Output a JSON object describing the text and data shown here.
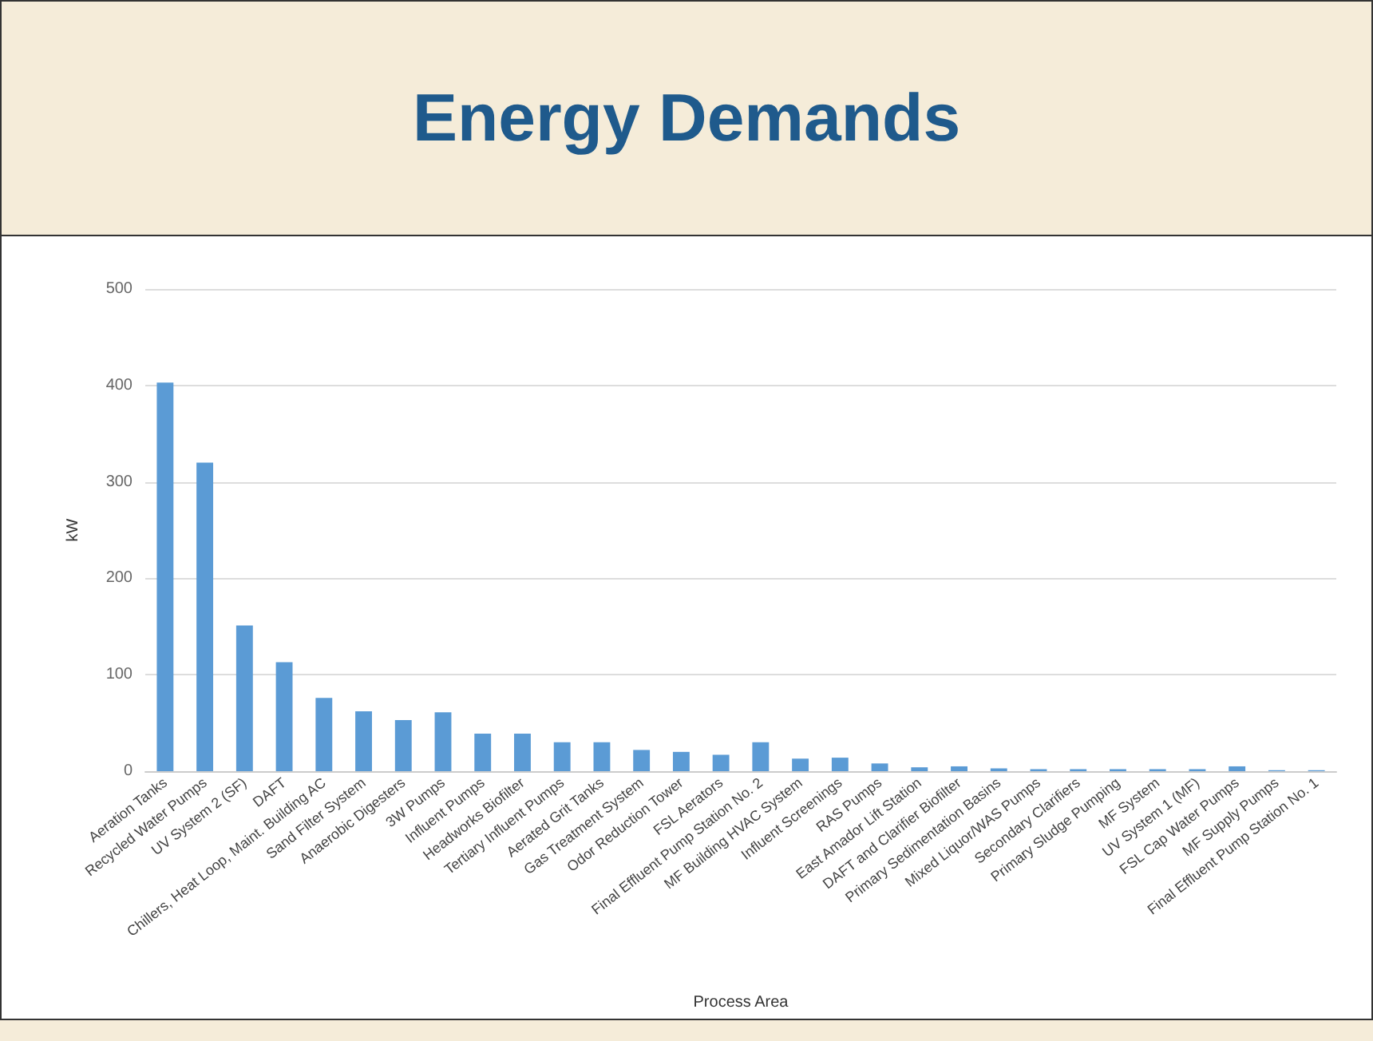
{
  "chart_data": {
    "type": "bar",
    "title": "Energy Demands",
    "xlabel": "Process Area",
    "ylabel": "kW",
    "categories": [
      "Aeration Tanks",
      "Recycled Water Pumps",
      "UV System 2 (SF)",
      "DAFT",
      "Chillers, Heat Loop, Maint. Building AC",
      "Sand Filter System",
      "Anaerobic Digesters",
      "3W Pumps",
      "Influent Pumps",
      "Headworks Biofilter",
      "Tertiary Influent Pumps",
      "Aerated Grit Tanks",
      "Gas Treatment System",
      "Odor Reduction Tower",
      "FSL Aerators",
      "Final Effluent Pump Station No. 2",
      "MF Building HVAC System",
      "Influent Screenings",
      "RAS Pumps",
      "East Amador Lift Station",
      "DAFT and Clarifier Biofilter",
      "Primary Sedimentation Basins",
      "Mixed Liquor/WAS Pumps",
      "Secondary Clarifiers",
      "Primary Sludge Pumping",
      "MF System",
      "UV System 1 (MF)",
      "FSL Cap Water Pumps",
      "MF Supply Pumps",
      "Final Effluent Pump Station No. 1"
    ],
    "values": [
      403,
      320,
      151,
      113,
      76,
      62,
      53,
      61,
      39,
      39,
      30,
      30,
      22,
      20,
      17,
      30,
      13,
      14,
      8,
      4,
      5,
      3,
      2,
      2,
      2,
      2,
      2,
      5,
      1,
      1
    ],
    "color": "#5b9bd5",
    "ylim": [
      0,
      500
    ],
    "yticks": [
      0,
      100,
      200,
      300,
      400,
      500
    ],
    "grid": "y"
  }
}
